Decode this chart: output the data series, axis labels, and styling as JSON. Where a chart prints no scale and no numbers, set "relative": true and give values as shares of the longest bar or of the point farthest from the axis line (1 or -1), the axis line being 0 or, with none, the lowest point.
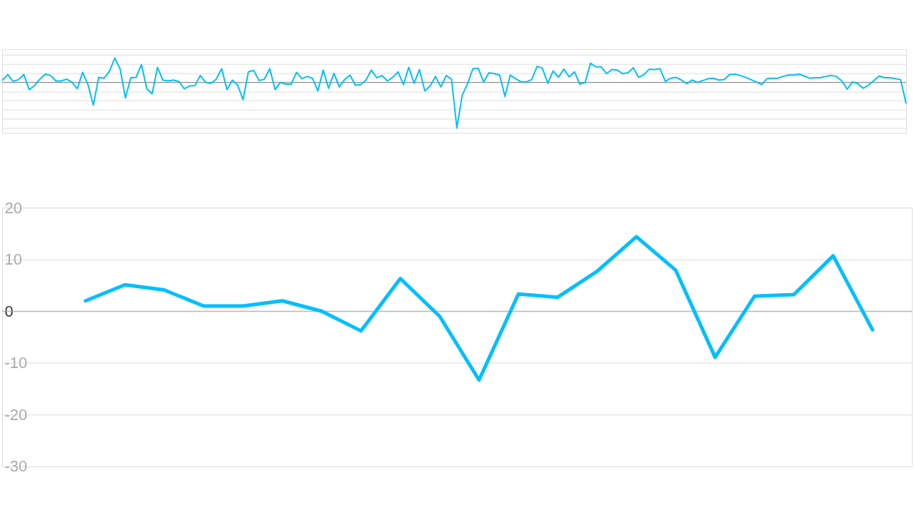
{
  "chart_data": [
    {
      "type": "line",
      "relative": true,
      "grid": "y",
      "tick_labels": false,
      "categories": [
        null,
        null,
        null,
        null,
        null,
        null,
        null,
        null,
        null,
        null,
        null,
        null,
        null,
        null,
        null,
        null,
        null,
        null,
        null,
        null,
        null,
        null,
        null,
        null,
        null,
        null,
        null,
        null,
        null,
        null,
        null,
        null,
        null,
        null,
        null,
        null,
        null,
        null,
        null,
        null,
        null,
        null,
        null,
        null,
        null,
        null,
        null,
        null,
        null,
        null,
        null,
        null,
        null,
        null,
        null,
        null,
        null,
        null,
        null,
        null,
        null,
        null,
        null,
        null,
        null,
        null,
        null,
        null,
        null,
        null,
        null,
        null,
        null,
        null,
        null,
        null,
        null,
        null,
        null,
        null,
        null,
        null,
        null,
        null,
        null,
        null,
        null,
        null,
        null,
        null,
        null,
        null,
        null,
        null,
        null,
        null,
        null,
        null,
        null,
        null,
        null,
        null,
        null,
        null,
        null,
        null,
        null,
        null,
        null,
        null,
        null,
        null,
        null,
        null,
        null,
        null,
        null,
        null,
        null,
        null,
        null,
        null,
        null,
        null,
        null,
        null,
        null,
        null,
        null,
        null,
        null,
        null,
        null,
        null,
        null,
        null,
        null,
        null,
        null,
        null,
        null,
        null,
        null,
        null,
        null,
        null,
        null,
        null,
        null,
        null,
        null,
        null,
        null,
        null,
        null,
        null,
        null,
        null,
        null,
        null,
        null,
        null,
        null,
        null,
        null,
        null,
        null,
        null,
        null,
        null
      ],
      "series": [
        {
          "color": "#00bfff",
          "values": [
            0.05,
            0.17,
            0.02,
            0.06,
            0.17,
            -0.16,
            -0.07,
            0.07,
            0.18,
            0.15,
            0.03,
            0.03,
            0.07,
            0,
            -0.14,
            0.22,
            -0.05,
            -0.5,
            0.11,
            0.09,
            0.24,
            0.53,
            0.3,
            -0.34,
            0.1,
            0.11,
            0.39,
            -0.14,
            -0.25,
            0.33,
            0.05,
            0.03,
            0.05,
            0.02,
            -0.14,
            -0.08,
            -0.07,
            0.15,
            0,
            -0.02,
            0.07,
            0.3,
            -0.16,
            0.05,
            -0.06,
            -0.38,
            0.23,
            0.26,
            0.04,
            0.07,
            0.3,
            -0.16,
            0,
            -0.04,
            -0.04,
            0.22,
            0.08,
            0.13,
            0.09,
            -0.19,
            0.27,
            -0.13,
            0.2,
            -0.1,
            0.06,
            0.16,
            -0.06,
            -0.05,
            0.05,
            0.27,
            0.1,
            0.15,
            0.03,
            0.11,
            0.23,
            -0.05,
            0.33,
            -0.02,
            0.28,
            -0.19,
            -0.08,
            0.13,
            -0.1,
            0.15,
            0.07,
            -1,
            -0.28,
            -0.03,
            0.3,
            0.31,
            0.01,
            0.21,
            0.19,
            0.16,
            -0.31,
            0.16,
            0.08,
            0.01,
            0.01,
            0.06,
            0.35,
            0.31,
            -0.02,
            0.25,
            0.11,
            0.29,
            0.12,
            0.23,
            -0.04,
            0,
            0.42,
            0.34,
            0.34,
            0.19,
            0.28,
            0.27,
            0.19,
            0.21,
            0.32,
            0.11,
            0.17,
            0.29,
            0.28,
            0.3,
            0.02,
            0.09,
            0.11,
            0.05,
            -0.03,
            0.05,
            0,
            0.04,
            0.08,
            0.09,
            0.05,
            0.06,
            0.17,
            0.18,
            0.15,
            0.11,
            0.06,
            0.01,
            -0.05,
            0.08,
            0.09,
            0.09,
            0.13,
            0.16,
            0.16,
            0.18,
            0.14,
            0.09,
            0.1,
            0.1,
            0.13,
            0.15,
            0.13,
            0.03,
            -0.15,
            0.01,
            -0.03,
            -0.13,
            -0.06,
            0.04,
            0.14,
            0.1,
            0.1,
            0.08,
            0.06,
            -0.45
          ]
        }
      ]
    },
    {
      "type": "line",
      "grid": "y",
      "tick_labels": "y",
      "categories": [
        null,
        null,
        null,
        null,
        null,
        null,
        null,
        null,
        null,
        null,
        null,
        null,
        null,
        null,
        null,
        null,
        null,
        null,
        null,
        null,
        null
      ],
      "ylim": [
        -30,
        20
      ],
      "yticks": [
        -30,
        -20,
        -10,
        0,
        10,
        20
      ],
      "series": [
        {
          "color": "#00bfff",
          "values": [
            2.0,
            5.1,
            4.1,
            1.0,
            1.0,
            2.0,
            0,
            -3.8,
            6.3,
            -1.0,
            -13.3,
            3.3,
            2.7,
            7.7,
            14.4,
            7.9,
            -8.9,
            2.9,
            3.2,
            10.7,
            -3.6
          ]
        }
      ],
      "ref_lines": [
        {
          "axis": "y",
          "value": 0,
          "color": "#aaaaaa"
        }
      ]
    }
  ]
}
